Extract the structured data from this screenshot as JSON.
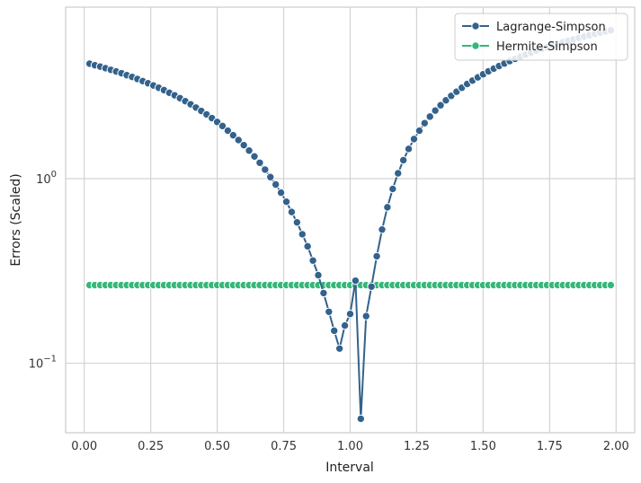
{
  "chart_data": {
    "type": "line",
    "xlabel": "Interval",
    "ylabel": "Errors (Scaled)",
    "x_scale": "linear",
    "y_scale": "log",
    "xlim": [
      -0.07,
      2.07
    ],
    "ylim": [
      0.042,
      8.5
    ],
    "grid": true,
    "legend_position": "top-right",
    "x_ticks": [
      {
        "value": 0.0,
        "label": "0.00"
      },
      {
        "value": 0.25,
        "label": "0.25"
      },
      {
        "value": 0.5,
        "label": "0.50"
      },
      {
        "value": 0.75,
        "label": "0.75"
      },
      {
        "value": 1.0,
        "label": "1.00"
      },
      {
        "value": 1.25,
        "label": "1.25"
      },
      {
        "value": 1.5,
        "label": "1.50"
      },
      {
        "value": 1.75,
        "label": "1.75"
      },
      {
        "value": 2.0,
        "label": "2.00"
      }
    ],
    "y_ticks": [
      {
        "value": 0.1,
        "base": "10",
        "exp": "−1"
      },
      {
        "value": 1,
        "base": "10",
        "exp": "0"
      }
    ],
    "x": [
      0.02,
      0.04,
      0.06,
      0.08,
      0.1,
      0.12,
      0.14,
      0.16,
      0.18,
      0.2,
      0.22,
      0.24,
      0.26,
      0.28,
      0.3,
      0.32,
      0.34,
      0.36,
      0.38,
      0.4,
      0.42,
      0.44,
      0.46,
      0.48,
      0.5,
      0.52,
      0.54,
      0.56,
      0.58,
      0.6,
      0.62,
      0.64,
      0.66,
      0.68,
      0.7,
      0.72,
      0.74,
      0.76,
      0.78,
      0.8,
      0.82,
      0.84,
      0.86,
      0.88,
      0.9,
      0.92,
      0.94,
      0.96,
      0.98,
      1.0,
      1.02,
      1.04,
      1.06,
      1.08,
      1.1,
      1.12,
      1.14,
      1.16,
      1.18,
      1.2,
      1.22,
      1.24,
      1.26,
      1.28,
      1.3,
      1.32,
      1.34,
      1.36,
      1.38,
      1.4,
      1.42,
      1.44,
      1.46,
      1.48,
      1.5,
      1.52,
      1.54,
      1.56,
      1.58,
      1.6,
      1.62,
      1.64,
      1.66,
      1.68,
      1.7,
      1.72,
      1.74,
      1.76,
      1.78,
      1.8,
      1.82,
      1.84,
      1.86,
      1.88,
      1.9,
      1.92,
      1.94,
      1.96,
      1.98
    ],
    "series": [
      {
        "name": "Lagrange-Simpson",
        "color": "#33628c",
        "values": [
          4.2,
          4.12,
          4.05,
          3.97,
          3.89,
          3.81,
          3.73,
          3.64,
          3.56,
          3.47,
          3.38,
          3.29,
          3.2,
          3.11,
          3.02,
          2.92,
          2.83,
          2.73,
          2.63,
          2.53,
          2.43,
          2.33,
          2.23,
          2.13,
          2.03,
          1.93,
          1.82,
          1.72,
          1.62,
          1.52,
          1.42,
          1.32,
          1.22,
          1.12,
          1.02,
          0.93,
          0.84,
          0.75,
          0.66,
          0.58,
          0.5,
          0.43,
          0.36,
          0.3,
          0.24,
          0.19,
          0.15,
          0.12,
          0.16,
          0.185,
          0.28,
          0.05,
          0.18,
          0.26,
          0.38,
          0.53,
          0.7,
          0.88,
          1.07,
          1.26,
          1.45,
          1.64,
          1.82,
          2.0,
          2.17,
          2.34,
          2.5,
          2.66,
          2.81,
          2.96,
          3.11,
          3.26,
          3.4,
          3.54,
          3.68,
          3.82,
          3.95,
          4.08,
          4.21,
          4.34,
          4.46,
          4.58,
          4.7,
          4.82,
          4.94,
          5.05,
          5.16,
          5.27,
          5.38,
          5.49,
          5.59,
          5.69,
          5.79,
          5.89,
          5.99,
          6.09,
          6.19,
          6.28,
          6.37
        ]
      },
      {
        "name": "Hermite-Simpson",
        "color": "#35b779",
        "values": [
          0.265,
          0.265,
          0.265,
          0.265,
          0.265,
          0.265,
          0.265,
          0.265,
          0.265,
          0.265,
          0.265,
          0.265,
          0.265,
          0.265,
          0.265,
          0.265,
          0.265,
          0.265,
          0.265,
          0.265,
          0.265,
          0.265,
          0.265,
          0.265,
          0.265,
          0.265,
          0.265,
          0.265,
          0.265,
          0.265,
          0.265,
          0.265,
          0.265,
          0.265,
          0.265,
          0.265,
          0.265,
          0.265,
          0.265,
          0.265,
          0.265,
          0.265,
          0.265,
          0.265,
          0.265,
          0.265,
          0.265,
          0.265,
          0.265,
          0.265,
          0.265,
          0.265,
          0.265,
          0.265,
          0.265,
          0.265,
          0.265,
          0.265,
          0.265,
          0.265,
          0.265,
          0.265,
          0.265,
          0.265,
          0.265,
          0.265,
          0.265,
          0.265,
          0.265,
          0.265,
          0.265,
          0.265,
          0.265,
          0.265,
          0.265,
          0.265,
          0.265,
          0.265,
          0.265,
          0.265,
          0.265,
          0.265,
          0.265,
          0.265,
          0.265,
          0.265,
          0.265,
          0.265,
          0.265,
          0.265,
          0.265,
          0.265,
          0.265,
          0.265,
          0.265,
          0.265,
          0.265,
          0.265,
          0.265
        ]
      }
    ]
  }
}
